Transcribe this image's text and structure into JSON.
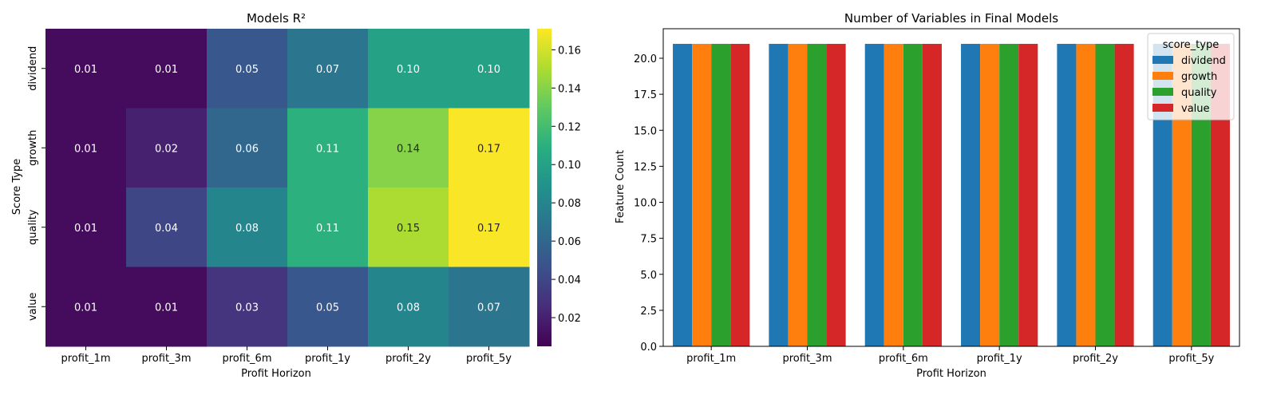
{
  "chart_data": [
    {
      "type": "heatmap",
      "title": "Models R²",
      "xlabel": "Profit Horizon",
      "ylabel": "Score Type",
      "x_categories": [
        "profit_1m",
        "profit_3m",
        "profit_6m",
        "profit_1y",
        "profit_2y",
        "profit_5y"
      ],
      "y_categories": [
        "dividend",
        "growth",
        "quality",
        "value"
      ],
      "values": [
        [
          0.01,
          0.01,
          0.05,
          0.07,
          0.1,
          0.1
        ],
        [
          0.01,
          0.02,
          0.06,
          0.11,
          0.14,
          0.17
        ],
        [
          0.01,
          0.04,
          0.08,
          0.11,
          0.15,
          0.17
        ],
        [
          0.01,
          0.01,
          0.03,
          0.05,
          0.08,
          0.07
        ]
      ],
      "value_range": [
        0.005,
        0.171
      ],
      "colormap": "viridis",
      "colorbar_ticks": [
        "0.02",
        "0.04",
        "0.06",
        "0.08",
        "0.10",
        "0.12",
        "0.14",
        "0.16"
      ],
      "grid": false
    },
    {
      "type": "bar",
      "title": "Number of Variables in Final Models",
      "xlabel": "Profit Horizon",
      "ylabel": "Feature Count",
      "categories": [
        "profit_1m",
        "profit_3m",
        "profit_6m",
        "profit_1y",
        "profit_2y",
        "profit_5y"
      ],
      "series": [
        {
          "name": "dividend",
          "color": "#1f77b4",
          "values": [
            21,
            21,
            21,
            21,
            21,
            21
          ]
        },
        {
          "name": "growth",
          "color": "#ff7f0e",
          "values": [
            21,
            21,
            21,
            21,
            21,
            21
          ]
        },
        {
          "name": "quality",
          "color": "#2ca02c",
          "values": [
            21,
            21,
            21,
            21,
            21,
            21
          ]
        },
        {
          "name": "value",
          "color": "#d62728",
          "values": [
            21,
            21,
            21,
            21,
            21,
            21
          ]
        }
      ],
      "ylim": [
        0,
        22.05
      ],
      "yticks": [
        "0.0",
        "2.5",
        "5.0",
        "7.5",
        "10.0",
        "12.5",
        "15.0",
        "17.5",
        "20.0"
      ],
      "legend_title": "score_type",
      "legend_position": "top-right",
      "grid": false
    }
  ]
}
